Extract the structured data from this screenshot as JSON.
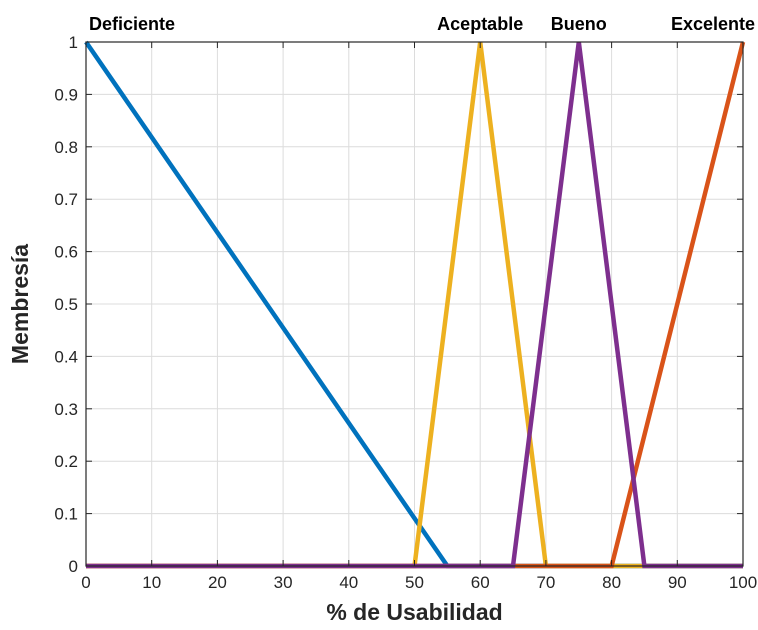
{
  "chart_data": {
    "type": "line",
    "xlabel": "% de Usabilidad",
    "ylabel": "Membresía",
    "xlim": [
      0,
      100
    ],
    "ylim": [
      0,
      1
    ],
    "xticks": [
      0,
      10,
      20,
      30,
      40,
      50,
      60,
      70,
      80,
      90,
      100
    ],
    "yticks": [
      0,
      0.1,
      0.2,
      0.3,
      0.4,
      0.5,
      0.6,
      0.7,
      0.8,
      0.9,
      1
    ],
    "grid": true,
    "series": [
      {
        "name": "Deficiente",
        "color": "#0072BD",
        "x": [
          0,
          55,
          100
        ],
        "y": [
          1,
          0,
          0
        ]
      },
      {
        "name": "Aceptable",
        "color": "#EDB120",
        "x": [
          0,
          50,
          60,
          70,
          100
        ],
        "y": [
          0,
          0,
          1,
          0,
          0
        ]
      },
      {
        "name": "Excelente",
        "color": "#D95319",
        "x": [
          0,
          80,
          100
        ],
        "y": [
          0,
          0,
          1
        ]
      },
      {
        "name": "Bueno",
        "color": "#7E2F8E",
        "x": [
          0,
          65,
          75,
          85,
          100
        ],
        "y": [
          0,
          0,
          1,
          0,
          0
        ]
      }
    ],
    "labels": [
      {
        "text": "Deficiente",
        "x": 0
      },
      {
        "text": "Aceptable",
        "x": 60
      },
      {
        "text": "Bueno",
        "x": 75
      },
      {
        "text": "Excelente",
        "x": 100
      }
    ]
  }
}
